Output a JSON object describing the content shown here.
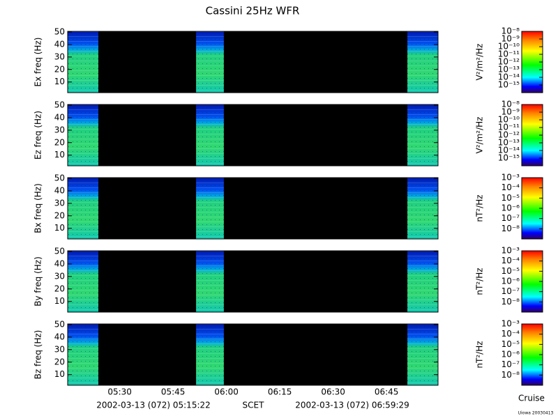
{
  "title": "Cassini 25Hz WFR",
  "chart_data": [
    {
      "type": "spectrogram",
      "ylabel": "Ex freq (Hz)",
      "ylim": [
        1.5,
        50.5
      ],
      "yticks": [
        10,
        20,
        30,
        40,
        50
      ],
      "colorbar": {
        "label": "V²/m²/Hz",
        "clim": [
          -16,
          -8
        ],
        "ticks": [
          {
            "value": -8,
            "label": "10⁻⁸"
          },
          {
            "value": -9,
            "label": "10⁻⁹"
          },
          {
            "value": -10,
            "label": "10⁻¹⁰"
          },
          {
            "value": -11,
            "label": "10⁻¹¹"
          },
          {
            "value": -12,
            "label": "10⁻¹²"
          },
          {
            "value": -13,
            "label": "10⁻¹³"
          },
          {
            "value": -14,
            "label": "10⁻¹⁴"
          },
          {
            "value": -15,
            "label": "10⁻¹⁵"
          }
        ]
      }
    },
    {
      "type": "spectrogram",
      "ylabel": "Ez freq (Hz)",
      "ylim": [
        1.5,
        50.5
      ],
      "yticks": [
        10,
        20,
        30,
        40,
        50
      ],
      "colorbar": {
        "label": "V²/m²/Hz",
        "clim": [
          -16,
          -8
        ],
        "ticks": [
          {
            "value": -8,
            "label": "10⁻⁸"
          },
          {
            "value": -9,
            "label": "10⁻⁹"
          },
          {
            "value": -10,
            "label": "10⁻¹⁰"
          },
          {
            "value": -11,
            "label": "10⁻¹¹"
          },
          {
            "value": -12,
            "label": "10⁻¹²"
          },
          {
            "value": -13,
            "label": "10⁻¹³"
          },
          {
            "value": -14,
            "label": "10⁻¹⁴"
          },
          {
            "value": -15,
            "label": "10⁻¹⁵"
          }
        ]
      }
    },
    {
      "type": "spectrogram",
      "ylabel": "Bx freq (Hz)",
      "ylim": [
        1.5,
        50.5
      ],
      "yticks": [
        10,
        20,
        30,
        40,
        50
      ],
      "colorbar": {
        "label": "nT²/Hz",
        "clim": [
          -9,
          -3
        ],
        "ticks": [
          {
            "value": -3,
            "label": "10⁻³"
          },
          {
            "value": -4,
            "label": "10⁻⁴"
          },
          {
            "value": -5,
            "label": "10⁻⁵"
          },
          {
            "value": -6,
            "label": "10⁻⁶"
          },
          {
            "value": -7,
            "label": "10⁻⁷"
          },
          {
            "value": -8,
            "label": "10⁻⁸"
          }
        ]
      }
    },
    {
      "type": "spectrogram",
      "ylabel": "By freq (Hz)",
      "ylim": [
        1.5,
        50.5
      ],
      "yticks": [
        10,
        20,
        30,
        40,
        50
      ],
      "colorbar": {
        "label": "nT²/Hz",
        "clim": [
          -9,
          -3
        ],
        "ticks": [
          {
            "value": -3,
            "label": "10⁻³"
          },
          {
            "value": -4,
            "label": "10⁻⁴"
          },
          {
            "value": -5,
            "label": "10⁻⁵"
          },
          {
            "value": -6,
            "label": "10⁻⁶"
          },
          {
            "value": -7,
            "label": "10⁻⁷"
          },
          {
            "value": -8,
            "label": "10⁻⁸"
          }
        ]
      }
    },
    {
      "type": "spectrogram",
      "ylabel": "Bz freq (Hz)",
      "ylim": [
        1.5,
        50.5
      ],
      "yticks": [
        10,
        20,
        30,
        40,
        50
      ],
      "colorbar": {
        "label": "nT²/Hz",
        "clim": [
          -9,
          -3
        ],
        "ticks": [
          {
            "value": -3,
            "label": "10⁻³"
          },
          {
            "value": -4,
            "label": "10⁻⁴"
          },
          {
            "value": -5,
            "label": "10⁻⁵"
          },
          {
            "value": -6,
            "label": "10⁻⁶"
          },
          {
            "value": -7,
            "label": "10⁻⁷"
          },
          {
            "value": -8,
            "label": "10⁻⁸"
          }
        ]
      }
    }
  ],
  "time_axis": {
    "xlim": [
      "05:15:22",
      "06:59:29"
    ],
    "xticks": [
      "05:30",
      "05:45",
      "06:00",
      "06:15",
      "06:30",
      "06:45"
    ],
    "data_intervals": [
      [
        "05:15:22",
        "05:24:00"
      ],
      [
        "05:51:28",
        "05:59:16"
      ],
      [
        "06:50:52",
        "06:59:29"
      ]
    ]
  },
  "footer": {
    "start": "2002-03-13 (072) 05:15:22",
    "scet": "SCET",
    "end": "2002-03-13 (072) 06:59:29",
    "mission_phase": "Cruise",
    "credit": "Uiowa 20030413"
  }
}
